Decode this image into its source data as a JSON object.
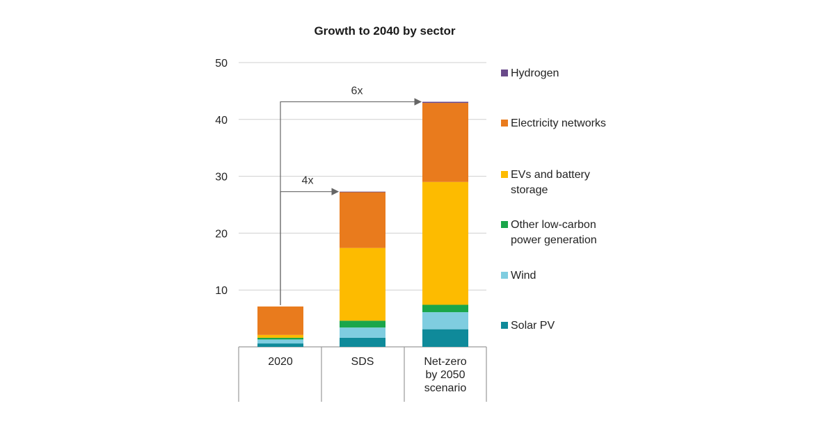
{
  "chart_data": {
    "type": "bar",
    "stacked": true,
    "title": "Growth to 2040 by sector",
    "xlabel": "",
    "ylabel": "",
    "ylim": [
      0,
      50
    ],
    "yticks": [
      10,
      20,
      30,
      40,
      50
    ],
    "grid": true,
    "legend_position": "right",
    "categories": [
      [
        "2020"
      ],
      [
        "SDS"
      ],
      [
        "Net-zero",
        "by 2050",
        "scenario"
      ]
    ],
    "series": [
      {
        "name": "Solar PV",
        "legend_lines": [
          "Solar PV"
        ],
        "color": "#0f8a9a",
        "values": [
          0.6,
          1.6,
          3.1
        ]
      },
      {
        "name": "Wind",
        "legend_lines": [
          "Wind"
        ],
        "color": "#7fcde0",
        "values": [
          0.7,
          1.8,
          3.0
        ]
      },
      {
        "name": "Other low-carbon power generation",
        "legend_lines": [
          "Other low-carbon",
          "power generation"
        ],
        "color": "#1aa64a",
        "values": [
          0.3,
          1.2,
          1.3
        ]
      },
      {
        "name": "EVs and battery storage",
        "legend_lines": [
          "EVs and battery",
          "storage"
        ],
        "color": "#fdbb00",
        "values": [
          0.5,
          12.8,
          21.6
        ]
      },
      {
        "name": "Electricity networks",
        "legend_lines": [
          "Electricity networks"
        ],
        "color": "#e97b1d",
        "values": [
          5.0,
          9.8,
          13.9
        ]
      },
      {
        "name": "Hydrogen",
        "legend_lines": [
          "Hydrogen"
        ],
        "color": "#6a4a8a",
        "values": [
          0.0,
          0.1,
          0.2
        ]
      }
    ],
    "annotations": [
      {
        "label": "4x",
        "from_category": 0,
        "to_category": 1
      },
      {
        "label": "6x",
        "from_category": 0,
        "to_category": 2
      }
    ]
  }
}
